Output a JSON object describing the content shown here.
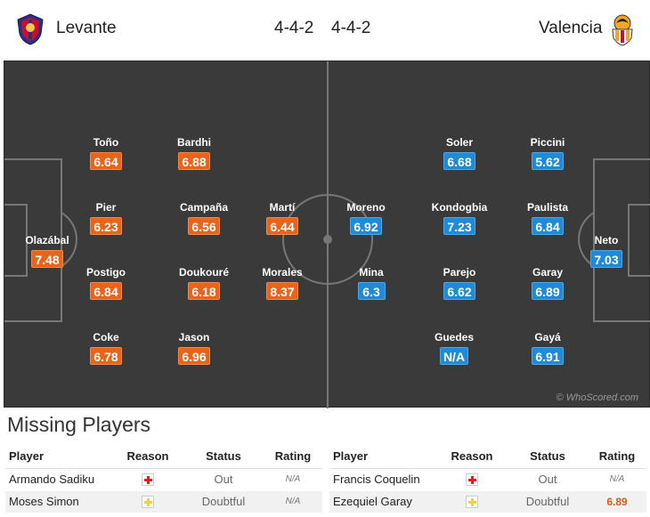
{
  "home": {
    "name": "Levante",
    "formation": "4-4-2",
    "crest_icon": "levante-crest-icon",
    "rating_color": "#e8641a"
  },
  "away": {
    "name": "Valencia",
    "formation": "4-4-2",
    "crest_icon": "valencia-crest-icon",
    "rating_color": "#1f8bd6"
  },
  "pitch": {
    "background": "#3a3a3a",
    "watermark": "© WhoScored.com",
    "home_players": [
      {
        "name": "Toño",
        "rating": "6.64"
      },
      {
        "name": "Bardhi",
        "rating": "6.88"
      },
      {
        "name": "Pier",
        "rating": "6.23"
      },
      {
        "name": "Campaña",
        "rating": "6.56"
      },
      {
        "name": "Martí",
        "rating": "6.44"
      },
      {
        "name": "Olazábal",
        "rating": "7.48"
      },
      {
        "name": "Postigo",
        "rating": "6.84"
      },
      {
        "name": "Doukouré",
        "rating": "6.18"
      },
      {
        "name": "Morales",
        "rating": "8.37"
      },
      {
        "name": "Coke",
        "rating": "6.78"
      },
      {
        "name": "Jason",
        "rating": "6.96"
      }
    ],
    "away_players": [
      {
        "name": "Soler",
        "rating": "6.68"
      },
      {
        "name": "Piccini",
        "rating": "5.62"
      },
      {
        "name": "Moreno",
        "rating": "6.92"
      },
      {
        "name": "Kondogbia",
        "rating": "7.23"
      },
      {
        "name": "Paulista",
        "rating": "6.84"
      },
      {
        "name": "Neto",
        "rating": "7.03"
      },
      {
        "name": "Mina",
        "rating": "6.3"
      },
      {
        "name": "Parejo",
        "rating": "6.62"
      },
      {
        "name": "Garay",
        "rating": "6.89"
      },
      {
        "name": "Guedes",
        "rating": "N/A"
      },
      {
        "name": "Gayá",
        "rating": "6.91"
      }
    ]
  },
  "missing": {
    "title": "Missing Players",
    "headers": {
      "player": "Player",
      "reason": "Reason",
      "status": "Status",
      "rating": "Rating"
    },
    "home": [
      {
        "player": "Armando Sadiku",
        "reason_icon": "injury-icon",
        "status": "Out",
        "rating": "N/A"
      },
      {
        "player": "Moses Simon",
        "reason_icon": "doubtful-icon",
        "status": "Doubtful",
        "rating": "N/A"
      }
    ],
    "away": [
      {
        "player": "Francis Coquelin",
        "reason_icon": "injury-icon",
        "status": "Out",
        "rating": "N/A"
      },
      {
        "player": "Ezequiel Garay",
        "reason_icon": "doubtful-icon",
        "status": "Doubtful",
        "rating": "6.89"
      }
    ],
    "colors": {
      "injury": "#e0201f",
      "doubtful": "#f2cf3b"
    }
  }
}
